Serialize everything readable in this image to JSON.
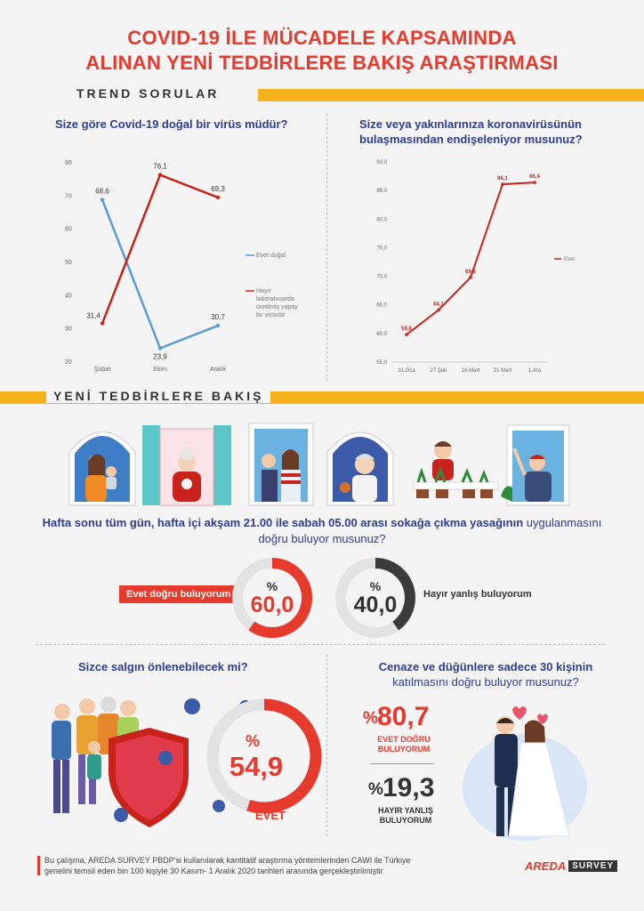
{
  "header": {
    "title_line1": "COVID-19 İLE MÜCADELE KAPSAMINDA",
    "title_line2": "ALINAN YENİ TEDBİRLERE BAKIŞ ARAŞTIRMASI"
  },
  "section1": {
    "label": "TREND SORULAR"
  },
  "section2": {
    "label": "YENİ TEDBİRLERE BAKIŞ"
  },
  "chart1": {
    "question": "Size göre Covid-19 doğal bir virüs müdür?",
    "legend_evet": "Evet doğal",
    "legend_hayir_1": "Hayır",
    "legend_hayir_2": "laboratuvarda",
    "legend_hayir_3": "üretilmiş yapay",
    "legend_hayir_4": "bir virüstür"
  },
  "chart2": {
    "question_line1": "Size veya yakınlarınıza koronavirüsünün",
    "question_line2": "bulaşmasından endişeleniyor musunuz?",
    "legend": "Evet"
  },
  "chart_data": [
    {
      "type": "line",
      "title": "Size göre Covid-19 doğal bir virüs müdür?",
      "categories": [
        "Şubat",
        "Ekim",
        "Aralık"
      ],
      "series": [
        {
          "name": "Evet doğal",
          "values": [
            68.6,
            23.9,
            30.7
          ],
          "color": "#5a9bd5"
        },
        {
          "name": "Hayır laboratuvarda üretilmiş yapay bir virüstür",
          "values": [
            31.4,
            76.1,
            69.3
          ],
          "color": "#c9221b"
        }
      ],
      "labels": [
        "68,6",
        "23,9",
        "30,7",
        "31,4",
        "76,1",
        "69,3"
      ],
      "yticks": [
        "80",
        "70",
        "60",
        "50",
        "40",
        "30",
        "20"
      ],
      "ylim": [
        20,
        80
      ],
      "legend_position": "right"
    },
    {
      "type": "line",
      "title": "Size veya yakınlarınıza koronavirüsünün bulaşmasından endişeleniyor musunuz?",
      "categories": [
        "31.Oca",
        "27.Şub",
        "16 Mart",
        "21 Mart",
        "1.Ara"
      ],
      "series": [
        {
          "name": "Evet",
          "values": [
            59.8,
            64.1,
            69.8,
            86.1,
            86.4
          ],
          "color": "#c9221b"
        }
      ],
      "labels": [
        "59,8",
        "64,1",
        "69,8",
        "86,1",
        "86,4"
      ],
      "yticks": [
        "90,0",
        "85,0",
        "80,0",
        "75,0",
        "70,0",
        "65,0",
        "60,0",
        "55,0"
      ],
      "ylim": [
        55,
        90
      ],
      "legend_position": "right"
    }
  ],
  "curfew": {
    "question_line1_a": "Hafta sonu tüm gün, hafta içi akşam 21.00 ile sabah 05.00 arası",
    "question_line1_b": "sokağa çıkma yasağının",
    "question_line1_c": "uygulanmasını",
    "question_line2": "doğru buluyor musunuz?",
    "yes_label": "Evet doğru buluyorum",
    "yes_pct_sign": "%",
    "yes_value": "60,0",
    "yes_fraction": 0.6,
    "no_label": "Hayır yanlış buluyorum",
    "no_pct_sign": "%",
    "no_value": "40,0",
    "no_fraction": 0.4
  },
  "pandemic": {
    "question": "Sizce salgın önlenebilecek mi?",
    "pct_sign": "%",
    "value": "54,9",
    "fraction": 0.549,
    "label": "EVET"
  },
  "wedding": {
    "question_line1": "Cenaze ve düğünlere sadece 30 kişinin",
    "question_line2": "katılmasını doğru buluyor musunuz?",
    "yes_pct_sign": "%",
    "yes_value": "80,7",
    "yes_label_1": "EVET DOĞRU",
    "yes_label_2": "BULUYORUM",
    "no_pct_sign": "%",
    "no_value": "19,3",
    "no_label_1": "HAYIR YANLIŞ",
    "no_label_2": "BULUYORUM"
  },
  "footer": {
    "note_line1": "Bu çalışma, AREDA SURVEY PBDP'si kullanılarak kantitatif araştırma yöntemlerinden CAWI ile Türkiye",
    "note_line2": "genelini temsil eden bin 100 kişiyle 30 Kasım- 1 Aralık 2020 tarihleri arasında gerçekleştirilmiştir",
    "logo_brand": "AREDA",
    "logo_survey": "SURVEY"
  },
  "colors": {
    "red": "#e63a2c",
    "dark_red": "#c9221b",
    "blue": "#5a9bd5",
    "navy": "#2c3e8f",
    "yellow": "#f5b21a",
    "gray_ring": "#e3e3e3",
    "dark_ring": "#3b3b3b"
  }
}
